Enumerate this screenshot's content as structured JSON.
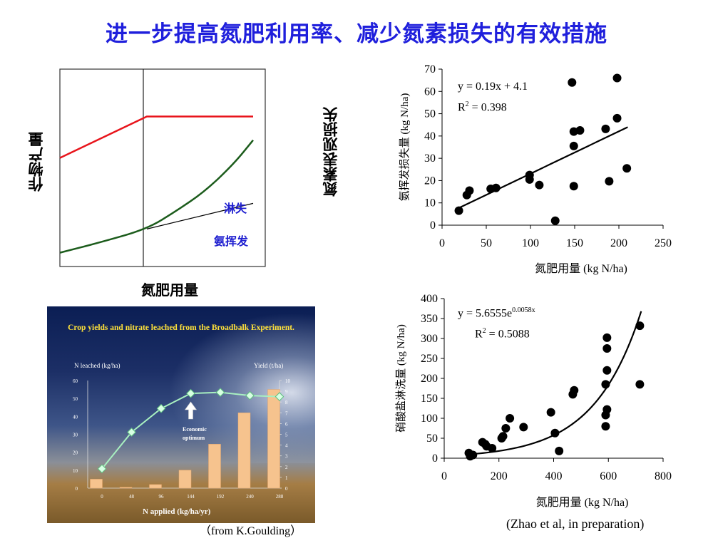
{
  "title": "进一步提高氮肥利用率、减少氮素损失的有效措施",
  "concept": {
    "ylabel_left": "作物产量",
    "ylabel_right": "氮素表观损失",
    "xlabel": "氮肥用量",
    "label_leaching": "淋失",
    "label_volatilization": "氨挥发"
  },
  "top_right": {
    "equation": "y = 0.19x + 4.1",
    "r2_prefix": "R",
    "r2_sup": "2",
    "r2_value": " = 0.398"
  },
  "bottom_right": {
    "eq_prefix": "y = 5.6555e",
    "eq_sup": "0.0058x",
    "r2_prefix": "R",
    "r2_sup": "2",
    "r2_value": " = 0.5088",
    "citation": "(Zhao et al, in preparation)"
  },
  "photo": {
    "title": "Crop yields and nitrate leached from the Broadbalk Experiment.",
    "left_axis_title": "N leached (kg/ha)",
    "right_axis_title": "Yield (t/ha)",
    "annotation_line1": "Economic",
    "annotation_line2": "optimum",
    "xlabel": "N applied (kg/ha/yr)",
    "credit": "（from K.Goulding）"
  },
  "chart_data": [
    {
      "type": "line",
      "title": "",
      "xlabel": "氮肥用量",
      "ylabel": "作物产量",
      "series": [
        {
          "name": "",
          "color": "#e8141b",
          "points": [
            [
              0,
              55
            ],
            [
              45,
              76
            ],
            [
              100,
              76
            ]
          ]
        },
        {
          "name": "淋失",
          "color": "#1c5c1c",
          "points": [
            [
              0,
              7
            ],
            [
              20,
              12
            ],
            [
              45,
              19
            ],
            [
              60,
              28
            ],
            [
              75,
              38
            ],
            [
              90,
              52
            ],
            [
              100,
              64
            ]
          ]
        },
        {
          "name": "氨挥发",
          "color": "#000000",
          "points": [
            [
              45,
              19
            ],
            [
              100,
              32
            ]
          ]
        }
      ],
      "xlim": [
        0,
        100
      ],
      "ylim": [
        0,
        100
      ]
    },
    {
      "type": "scatter",
      "xlabel": "氮肥用量 (kg N/ha)",
      "ylabel": "氨挥发损失量 (kg N/ha)",
      "xlim": [
        0,
        250
      ],
      "ylim": [
        0,
        70
      ],
      "xticks": [
        "0",
        "50",
        "100",
        "150",
        "200",
        "250"
      ],
      "yticks": [
        "0",
        "10",
        "20",
        "30",
        "40",
        "50",
        "60",
        "70"
      ],
      "points": [
        [
          19,
          6.5
        ],
        [
          28,
          13.5
        ],
        [
          31,
          15.5
        ],
        [
          55,
          16.3
        ],
        [
          61,
          16.7
        ],
        [
          99,
          22.5
        ],
        [
          99,
          20.5
        ],
        [
          110,
          18
        ],
        [
          128,
          2
        ],
        [
          147,
          64
        ],
        [
          149,
          42
        ],
        [
          149,
          35.5
        ],
        [
          149,
          17.5
        ],
        [
          156,
          42.5
        ],
        [
          185,
          43.2
        ],
        [
          189,
          19.7
        ],
        [
          198,
          66
        ],
        [
          198,
          48
        ],
        [
          209,
          25.5
        ]
      ],
      "trendline": {
        "slope": 0.19,
        "intercept": 4.1,
        "x_range": [
          20,
          210
        ]
      }
    },
    {
      "type": "scatter",
      "xlabel": "氮肥用量 (kg N/ha)",
      "ylabel": "硝酸盐淋洗量 (kg N/ha)",
      "xlim": [
        0,
        800
      ],
      "ylim": [
        0,
        400
      ],
      "xticks": [
        "0",
        "200",
        "400",
        "600",
        "800"
      ],
      "yticks": [
        "0",
        "50",
        "100",
        "150",
        "200",
        "250",
        "300",
        "350",
        "400"
      ],
      "points": [
        [
          90,
          13
        ],
        [
          95,
          5
        ],
        [
          105,
          8
        ],
        [
          140,
          40
        ],
        [
          150,
          35
        ],
        [
          155,
          30
        ],
        [
          175,
          25
        ],
        [
          210,
          50
        ],
        [
          215,
          55
        ],
        [
          225,
          75
        ],
        [
          240,
          100
        ],
        [
          290,
          78
        ],
        [
          390,
          115
        ],
        [
          405,
          63
        ],
        [
          420,
          18
        ],
        [
          470,
          160
        ],
        [
          475,
          170
        ],
        [
          590,
          80
        ],
        [
          590,
          108
        ],
        [
          595,
          122
        ],
        [
          590,
          185
        ],
        [
          595,
          220
        ],
        [
          595,
          275
        ],
        [
          595,
          302
        ],
        [
          715,
          185
        ],
        [
          715,
          332
        ]
      ],
      "trendline": {
        "a": 5.6555,
        "b": 0.0058,
        "x_range": [
          90,
          720
        ]
      }
    },
    {
      "type": "bar",
      "title": "Crop yields and nitrate leached from the Broadbalk Experiment.",
      "xlabel": "N applied (kg/ha/yr)",
      "ylabel": "N leached (kg/ha)",
      "y2label": "Yield (t/ha)",
      "categories": [
        "0",
        "48",
        "96",
        "144",
        "192",
        "240",
        "288"
      ],
      "bar_values": [
        5,
        0.5,
        2,
        10,
        24.5,
        42,
        55
      ],
      "line_series": {
        "name": "Yield (t/ha)",
        "values": [
          1.8,
          5.2,
          7.4,
          8.8,
          8.9,
          8.6,
          8.5
        ]
      },
      "ylim": [
        0,
        60
      ],
      "y2lim": [
        0,
        10
      ],
      "yticks": [
        "0",
        "10",
        "20",
        "30",
        "40",
        "50",
        "60"
      ],
      "y2ticks": [
        "0",
        "1",
        "2",
        "3",
        "4",
        "5",
        "6",
        "7",
        "8",
        "9",
        "10"
      ]
    }
  ]
}
